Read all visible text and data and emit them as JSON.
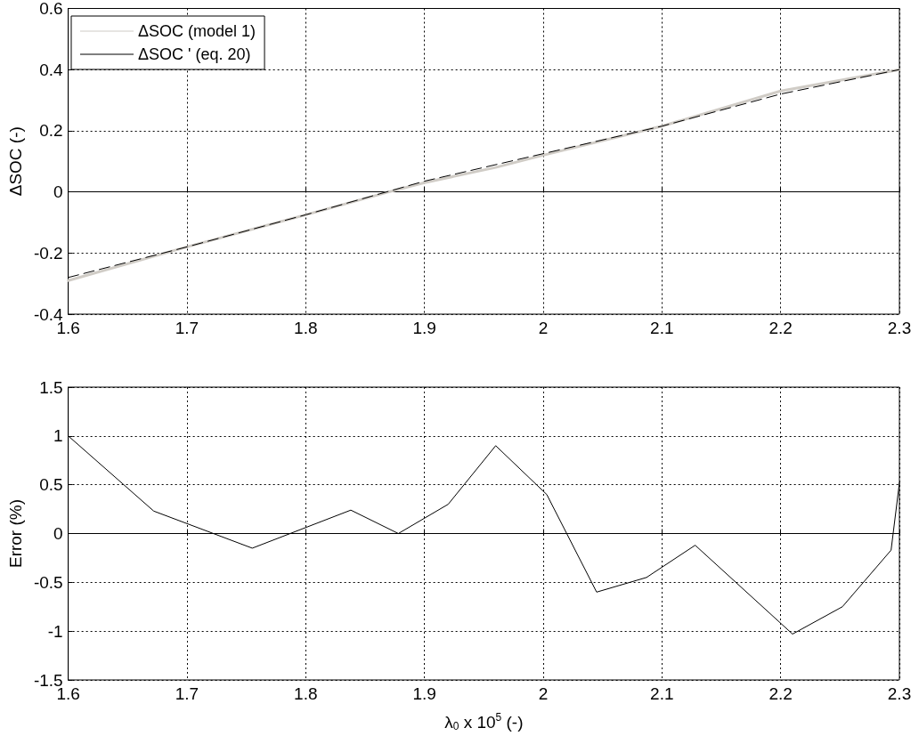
{
  "chart_data": [
    {
      "type": "line",
      "ylabel": "ΔSOC (-)",
      "xlim": [
        1.6,
        2.3
      ],
      "xticks": [
        1.6,
        1.7,
        1.8,
        1.9,
        2,
        2.1,
        2.2,
        2.3
      ],
      "ylim": [
        -0.4,
        0.6
      ],
      "yticks": [
        -0.4,
        -0.2,
        0,
        0.2,
        0.4,
        0.6
      ],
      "grid": true,
      "legend": "top left",
      "series": [
        {
          "name": "ΔSOC (model 1)",
          "color": "#d0ccc6",
          "line_style": "solid",
          "x": [
            1.6,
            1.7,
            1.8,
            1.87,
            1.9,
            1.96,
            2.0,
            2.1,
            2.2,
            2.3
          ],
          "values": [
            -0.29,
            -0.18,
            -0.075,
            0.0,
            0.03,
            0.08,
            0.12,
            0.215,
            0.33,
            0.4
          ]
        },
        {
          "name": "ΔSOC ' (eq. 20)",
          "color": "#000000",
          "line_style": "dashed",
          "x": [
            1.6,
            1.7,
            1.8,
            1.9,
            2.0,
            2.1,
            2.2,
            2.3
          ],
          "values": [
            -0.28,
            -0.18,
            -0.075,
            0.035,
            0.125,
            0.215,
            0.32,
            0.4
          ]
        }
      ]
    },
    {
      "type": "line",
      "xlabel": "λ$_{0}$ x 10$^{5}$ (-)",
      "ylabel": "Error (%)",
      "xlim": [
        1.6,
        2.3
      ],
      "xticks": [
        1.6,
        1.7,
        1.8,
        1.9,
        2,
        2.1,
        2.2,
        2.3
      ],
      "ylim": [
        -1.5,
        1.5
      ],
      "yticks": [
        -1.5,
        -1,
        -0.5,
        0,
        0.5,
        1,
        1.5
      ],
      "grid": true,
      "series": [
        {
          "color": "#000000",
          "line_style": "solid",
          "x": [
            1.6,
            1.672,
            1.755,
            1.838,
            1.878,
            1.92,
            1.96,
            2.003,
            2.045,
            2.087,
            2.128,
            2.21,
            2.252,
            2.293,
            2.3
          ],
          "values": [
            1.0,
            0.23,
            -0.15,
            0.24,
            0.0,
            0.3,
            0.9,
            0.4,
            -0.6,
            -0.45,
            -0.12,
            -1.03,
            -0.75,
            -0.17,
            0.52
          ]
        }
      ]
    }
  ]
}
